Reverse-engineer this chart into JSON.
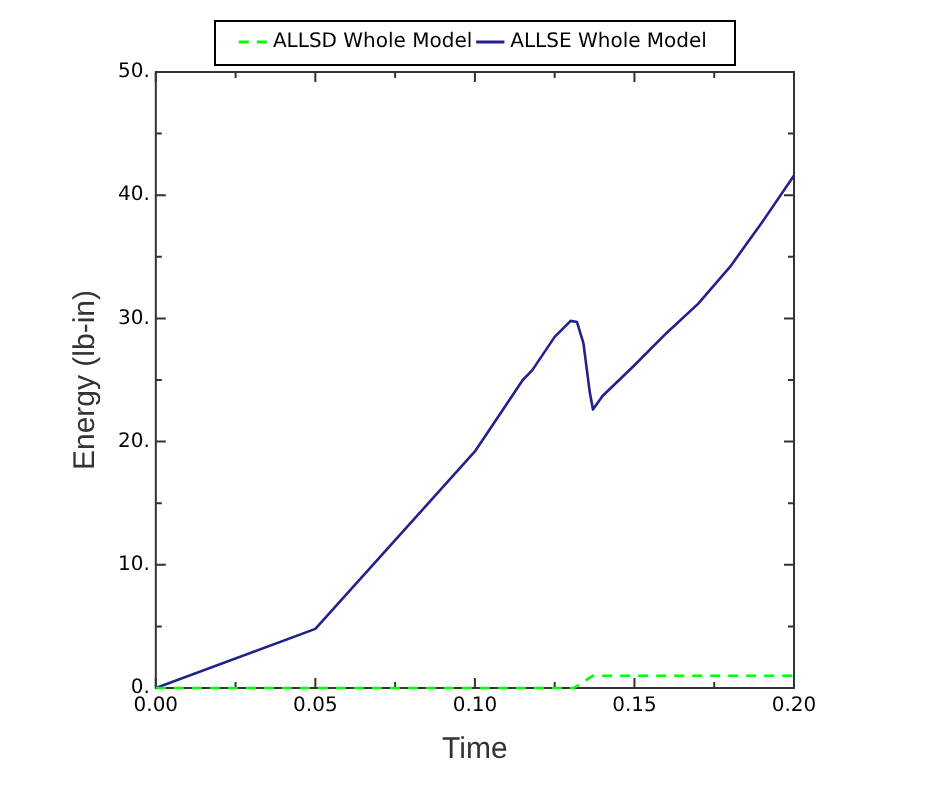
{
  "chart_data": {
    "type": "line",
    "xlabel": "Time",
    "ylabel": "Energy (lb-in)",
    "xlim": [
      0,
      0.2
    ],
    "ylim": [
      0,
      50
    ],
    "xticks": [
      {
        "value": 0,
        "label": "0.00"
      },
      {
        "value": 0.025,
        "label": null
      },
      {
        "value": 0.05,
        "label": "0.05"
      },
      {
        "value": 0.075,
        "label": null
      },
      {
        "value": 0.1,
        "label": "0.10"
      },
      {
        "value": 0.125,
        "label": null
      },
      {
        "value": 0.15,
        "label": "0.15"
      },
      {
        "value": 0.175,
        "label": null
      },
      {
        "value": 0.2,
        "label": "0.20"
      }
    ],
    "yticks": [
      {
        "value": 0,
        "label": "0."
      },
      {
        "value": 5,
        "label": null
      },
      {
        "value": 10,
        "label": "10."
      },
      {
        "value": 15,
        "label": null
      },
      {
        "value": 20,
        "label": "20."
      },
      {
        "value": 25,
        "label": null
      },
      {
        "value": 30,
        "label": "30."
      },
      {
        "value": 35,
        "label": null
      },
      {
        "value": 40,
        "label": "40."
      },
      {
        "value": 45,
        "label": null
      },
      {
        "value": 50,
        "label": "50."
      }
    ],
    "grid": false,
    "legend": "top",
    "marker": "none",
    "series": [
      {
        "name": "ALLSD Whole Model",
        "color": "#00ff00",
        "line_style": "dashed",
        "x": [
          0,
          0.131,
          0.137,
          0.2
        ],
        "values": [
          0,
          0,
          1.0,
          1.0
        ]
      },
      {
        "name": "ALLSE Whole Model",
        "color": "#22228b",
        "line_style": "solid",
        "x": [
          0,
          0.05,
          0.1,
          0.115,
          0.118,
          0.125,
          0.13,
          0.132,
          0.134,
          0.136,
          0.137,
          0.14,
          0.15,
          0.16,
          0.17,
          0.18,
          0.19,
          0.2
        ],
        "values": [
          0,
          4.8,
          19.2,
          25,
          25.8,
          28.5,
          29.8,
          29.7,
          28,
          24,
          22.6,
          23.7,
          26.2,
          28.8,
          31.2,
          34.2,
          37.8,
          41.6
        ]
      }
    ]
  }
}
